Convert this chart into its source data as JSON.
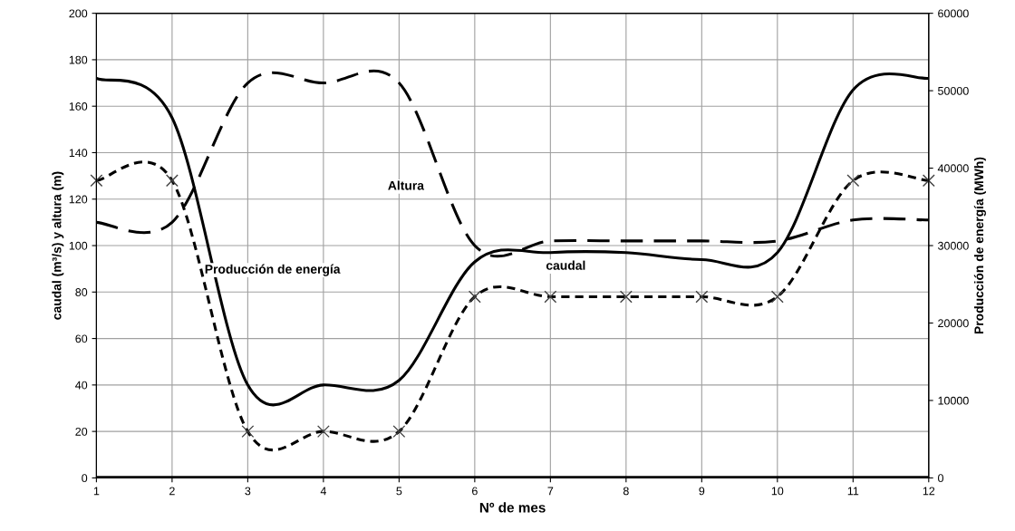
{
  "chart_data": {
    "type": "line",
    "xlabel": "Nº de mes",
    "ylabel": "caudal (m³/s) y altura (m)",
    "y2label": "Producción de energía (MWh)",
    "x": [
      1,
      2,
      3,
      4,
      5,
      6,
      7,
      8,
      9,
      10,
      11,
      12
    ],
    "xlim": [
      1,
      12
    ],
    "xticks": [
      1,
      2,
      3,
      4,
      5,
      6,
      7,
      8,
      9,
      10,
      11,
      12
    ],
    "ylim": [
      0,
      200
    ],
    "yticks": [
      0,
      20,
      40,
      60,
      80,
      100,
      120,
      140,
      160,
      180,
      200
    ],
    "y2lim": [
      0,
      60000
    ],
    "y2ticks": [
      0,
      10000,
      20000,
      30000,
      40000,
      50000,
      60000
    ],
    "grid": true,
    "legend": false,
    "series": [
      {
        "name": "Altura",
        "color": "#000000",
        "line_style": "dashed",
        "marker": "none",
        "values": [
          110,
          110,
          170,
          170,
          170,
          100,
          102,
          102,
          102,
          102,
          111,
          111
        ]
      },
      {
        "name": "caudal",
        "color": "#000000",
        "line_style": "solid",
        "marker": "none",
        "values": [
          172,
          155,
          40,
          40,
          42,
          93,
          97,
          97,
          94,
          97,
          167,
          172
        ]
      },
      {
        "name": "Producción de energía",
        "color": "#000000",
        "line_style": "dotted",
        "marker": "cross",
        "axis": "y2",
        "values": [
          38400,
          38400,
          6000,
          6000,
          6000,
          23400,
          23400,
          23400,
          23400,
          23400,
          38400,
          38400
        ]
      }
    ]
  }
}
